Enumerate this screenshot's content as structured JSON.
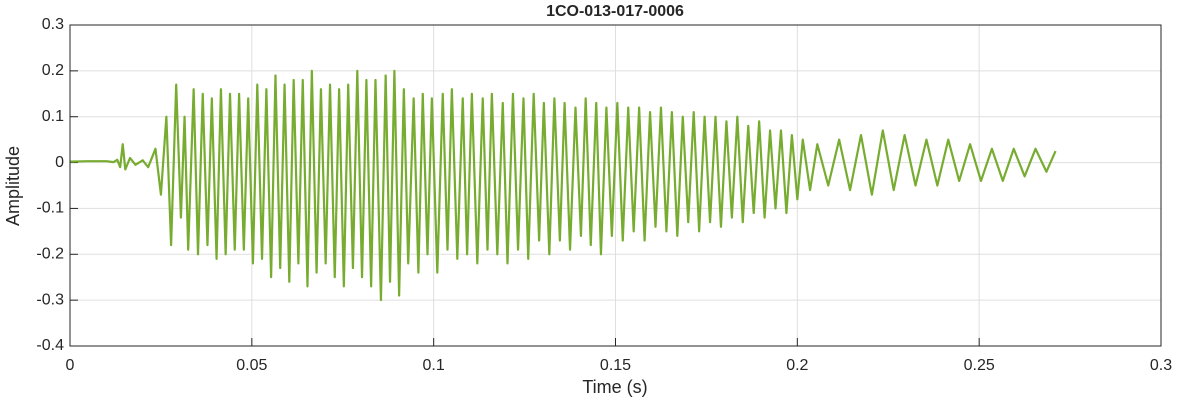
{
  "chart_data": {
    "type": "line",
    "title": "1CO-013-017-0006",
    "xlabel": "Time (s)",
    "ylabel": "Amplitude",
    "xlim": [
      0,
      0.3
    ],
    "ylim": [
      -0.4,
      0.3
    ],
    "xticks": [
      0,
      0.05,
      0.1,
      0.15,
      0.2,
      0.25,
      0.3
    ],
    "yticks": [
      -0.4,
      -0.3,
      -0.2,
      -0.1,
      0,
      0.1,
      0.2,
      0.3
    ],
    "grid": true,
    "series": [
      {
        "color": "#77ac30",
        "x": [
          0,
          0.005,
          0.01,
          0.012,
          0.013,
          0.0138,
          0.0145,
          0.0152,
          0.0165,
          0.018,
          0.02,
          0.0215,
          0.0235,
          0.025,
          0.0265,
          0.0278,
          0.0292,
          0.0305,
          0.0315,
          0.0325,
          0.034,
          0.0352,
          0.0365,
          0.0378,
          0.039,
          0.0403,
          0.0415,
          0.0428,
          0.044,
          0.0453,
          0.0465,
          0.0478,
          0.049,
          0.0503,
          0.0515,
          0.0528,
          0.054,
          0.0553,
          0.0565,
          0.0578,
          0.059,
          0.0603,
          0.0615,
          0.0628,
          0.064,
          0.0653,
          0.0665,
          0.0678,
          0.069,
          0.0703,
          0.0715,
          0.0728,
          0.074,
          0.0753,
          0.0765,
          0.0778,
          0.079,
          0.0803,
          0.0815,
          0.0828,
          0.084,
          0.0855,
          0.0868,
          0.088,
          0.0892,
          0.0905,
          0.0918,
          0.093,
          0.0945,
          0.0958,
          0.097,
          0.0983,
          0.0995,
          0.101,
          0.1025,
          0.1038,
          0.105,
          0.1065,
          0.108,
          0.1092,
          0.1105,
          0.112,
          0.1135,
          0.1148,
          0.116,
          0.1175,
          0.119,
          0.1203,
          0.1218,
          0.1232,
          0.1247,
          0.126,
          0.1275,
          0.129,
          0.1303,
          0.1318,
          0.1332,
          0.1347,
          0.136,
          0.1375,
          0.139,
          0.1405,
          0.1418,
          0.1432,
          0.1447,
          0.146,
          0.1475,
          0.149,
          0.1505,
          0.152,
          0.1535,
          0.155,
          0.1565,
          0.158,
          0.1595,
          0.161,
          0.1625,
          0.164,
          0.1655,
          0.167,
          0.1685,
          0.17,
          0.1715,
          0.173,
          0.1745,
          0.176,
          0.1775,
          0.179,
          0.1805,
          0.182,
          0.1835,
          0.185,
          0.1865,
          0.188,
          0.1895,
          0.191,
          0.1925,
          0.194,
          0.1955,
          0.197,
          0.1985,
          0.2,
          0.2015,
          0.2035,
          0.2055,
          0.2085,
          0.2115,
          0.2145,
          0.2175,
          0.2205,
          0.2235,
          0.2265,
          0.2295,
          0.2325,
          0.2355,
          0.2385,
          0.2415,
          0.2445,
          0.2475,
          0.2505,
          0.2535,
          0.2565,
          0.2595,
          0.2625,
          0.2655,
          0.2685,
          0.271
        ],
        "values": [
          0.002,
          0.003,
          0.003,
          0.001,
          0.006,
          -0.01,
          0.04,
          -0.015,
          0.01,
          -0.005,
          0.005,
          -0.01,
          0.03,
          -0.07,
          0.1,
          -0.18,
          0.17,
          -0.12,
          0.1,
          -0.19,
          0.16,
          -0.2,
          0.15,
          -0.18,
          0.14,
          -0.21,
          0.16,
          -0.2,
          0.15,
          -0.19,
          0.15,
          -0.19,
          0.14,
          -0.22,
          0.17,
          -0.21,
          0.16,
          -0.25,
          0.19,
          -0.23,
          0.17,
          -0.26,
          0.18,
          -0.22,
          0.18,
          -0.27,
          0.2,
          -0.24,
          0.16,
          -0.22,
          0.17,
          -0.25,
          0.16,
          -0.27,
          0.17,
          -0.23,
          0.2,
          -0.25,
          0.18,
          -0.27,
          0.18,
          -0.3,
          0.19,
          -0.26,
          0.2,
          -0.29,
          0.16,
          -0.22,
          0.14,
          -0.24,
          0.15,
          -0.2,
          0.14,
          -0.24,
          0.15,
          -0.19,
          0.16,
          -0.21,
          0.14,
          -0.2,
          0.15,
          -0.22,
          0.14,
          -0.19,
          0.15,
          -0.2,
          0.13,
          -0.22,
          0.15,
          -0.19,
          0.14,
          -0.21,
          0.15,
          -0.17,
          0.13,
          -0.2,
          0.14,
          -0.17,
          0.13,
          -0.19,
          0.12,
          -0.16,
          0.14,
          -0.18,
          0.13,
          -0.2,
          0.12,
          -0.16,
          0.13,
          -0.17,
          0.12,
          -0.15,
          0.12,
          -0.17,
          0.11,
          -0.14,
          0.12,
          -0.15,
          0.11,
          -0.16,
          0.1,
          -0.13,
          0.11,
          -0.15,
          0.1,
          -0.13,
          0.1,
          -0.14,
          0.09,
          -0.12,
          0.1,
          -0.13,
          0.08,
          -0.11,
          0.09,
          -0.12,
          0.07,
          -0.1,
          0.07,
          -0.11,
          0.06,
          -0.08,
          0.05,
          -0.06,
          0.04,
          -0.05,
          0.05,
          -0.06,
          0.06,
          -0.07,
          0.07,
          -0.06,
          0.06,
          -0.05,
          0.05,
          -0.05,
          0.05,
          -0.04,
          0.04,
          -0.04,
          0.03,
          -0.04,
          0.03,
          -0.03,
          0.03,
          -0.02,
          0.025
        ]
      }
    ]
  }
}
